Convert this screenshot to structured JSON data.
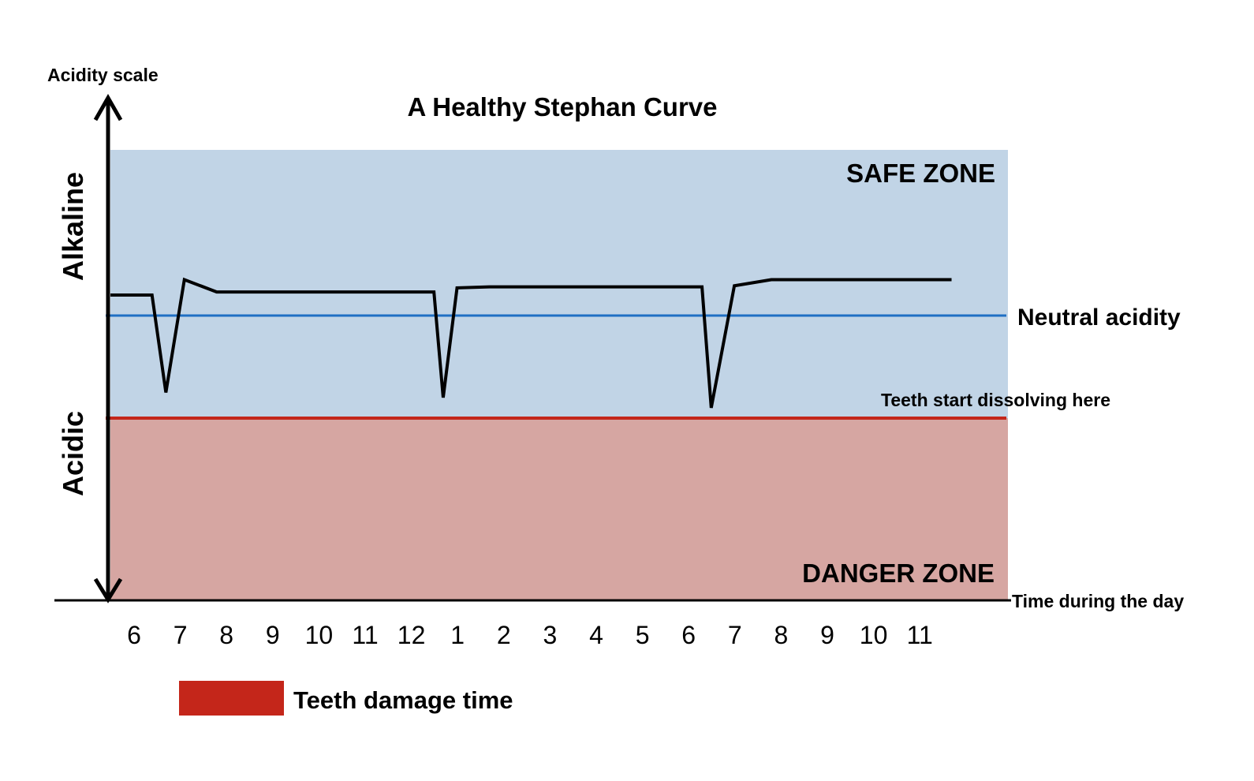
{
  "chart_data": {
    "type": "line",
    "title": "A Healthy Stephan Curve",
    "ylabel": "Acidity scale",
    "xlabel": "Time during the day",
    "y_regions": {
      "upper_label": "Alkaline",
      "lower_label": "Acidic"
    },
    "zones": [
      {
        "name": "SAFE ZONE",
        "color": "#c1d4e6"
      },
      {
        "name": "DANGER ZONE",
        "color": "#d6a6a2"
      }
    ],
    "reference_lines": [
      {
        "label": "Neutral acidity",
        "color": "#1f6fc4",
        "y": 0
      },
      {
        "label": "Teeth start dissolving here",
        "color": "#c4261a",
        "y": -1
      }
    ],
    "x_ticks": [
      "6",
      "7",
      "8",
      "9",
      "10",
      "11",
      "12",
      "1",
      "2",
      "3",
      "4",
      "5",
      "6",
      "7",
      "8",
      "9",
      "10",
      "11"
    ],
    "ylim": [
      -2,
      2.3
    ],
    "series": [
      {
        "color": "#000000",
        "points": [
          [
            0,
            0.2
          ],
          [
            0.9,
            0.2
          ],
          [
            1.2,
            -0.75
          ],
          [
            1.6,
            0.35
          ],
          [
            2.3,
            0.23
          ],
          [
            7.0,
            0.23
          ],
          [
            7.2,
            -0.8
          ],
          [
            7.5,
            0.27
          ],
          [
            8.2,
            0.28
          ],
          [
            12.8,
            0.28
          ],
          [
            13.0,
            -0.9
          ],
          [
            13.5,
            0.29
          ],
          [
            14.3,
            0.35
          ],
          [
            18.2,
            0.35
          ]
        ]
      }
    ],
    "legend": [
      {
        "label": "Teeth damage time",
        "color": "#c4261a"
      }
    ]
  }
}
